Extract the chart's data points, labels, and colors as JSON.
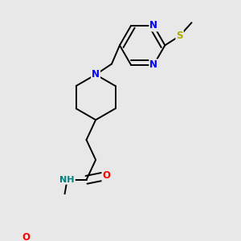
{
  "background_color": "#e8e8e8",
  "bond_color": "#000000",
  "atom_colors": {
    "N": "#0000ff",
    "O": "#ff0000",
    "S": "#aaaa00",
    "H": "#008080",
    "C": "#000000"
  },
  "font_size_atoms": 8.5,
  "line_width": 1.4,
  "title": ""
}
